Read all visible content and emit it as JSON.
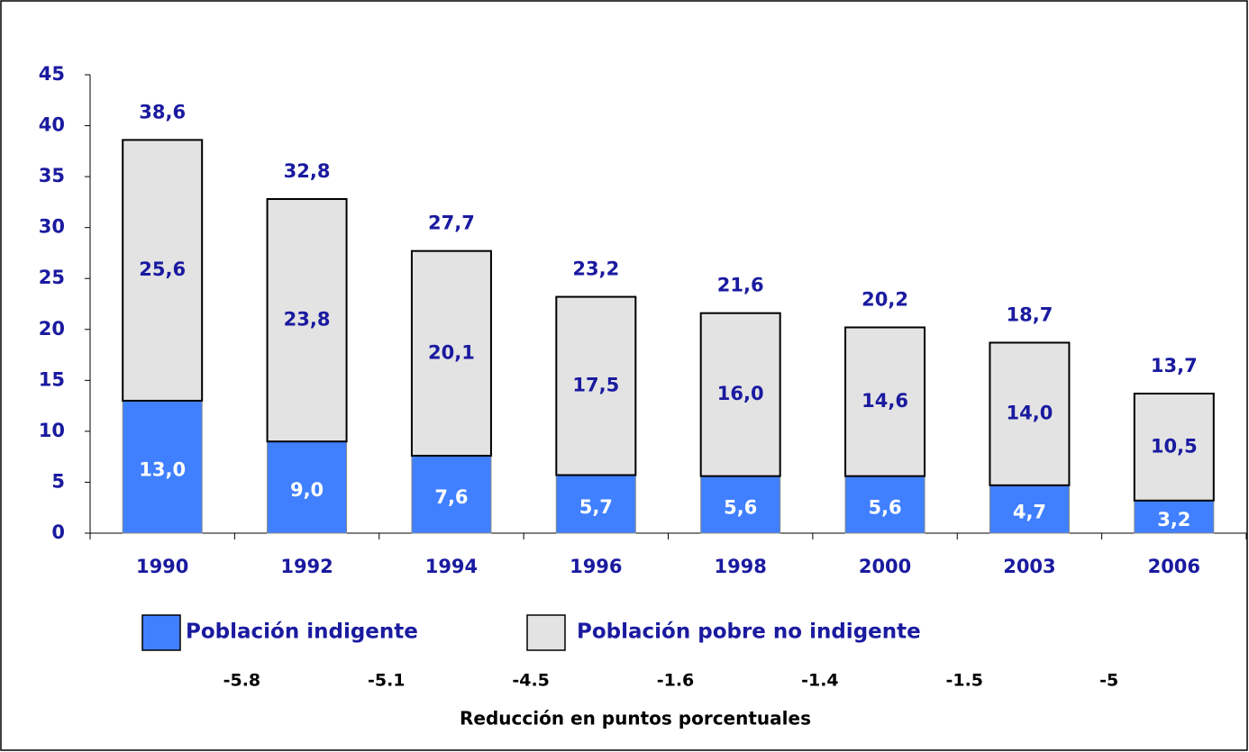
{
  "chart_data": {
    "type": "stacked-bar",
    "categories": [
      "1990",
      "1992",
      "1994",
      "1996",
      "1998",
      "2000",
      "2003",
      "2006"
    ],
    "series": [
      {
        "name": "Población indigente",
        "color": "#4080ff",
        "values": [
          13.0,
          9.0,
          7.6,
          5.7,
          5.6,
          5.6,
          4.7,
          3.2
        ],
        "value_labels": [
          "13,0",
          "9,0",
          "7,6",
          "5,7",
          "5,6",
          "5,6",
          "4,7",
          "3,2"
        ]
      },
      {
        "name": "Población pobre no indigente",
        "color": "#e3e3e3",
        "values": [
          25.6,
          23.8,
          20.1,
          17.5,
          16.0,
          14.6,
          14.0,
          10.5
        ],
        "value_labels": [
          "25,6",
          "23,8",
          "20,1",
          "17,5",
          "16,0",
          "14,6",
          "14,0",
          "10,5"
        ]
      }
    ],
    "totals": [
      38.6,
      32.8,
      27.7,
      23.2,
      21.6,
      20.2,
      18.7,
      13.7
    ],
    "total_labels": [
      "38,6",
      "32,8",
      "27,7",
      "23,2",
      "21,6",
      "20,2",
      "18,7",
      "13,7"
    ],
    "reductions": [
      -5.8,
      -5.1,
      -4.5,
      -1.6,
      -1.4,
      -1.5,
      -5
    ],
    "reductions_label": "Reducción en puntos porcentuales",
    "ylim": [
      0,
      45
    ],
    "yticks": [
      0,
      5,
      10,
      15,
      20,
      25,
      30,
      35,
      40,
      45
    ]
  }
}
